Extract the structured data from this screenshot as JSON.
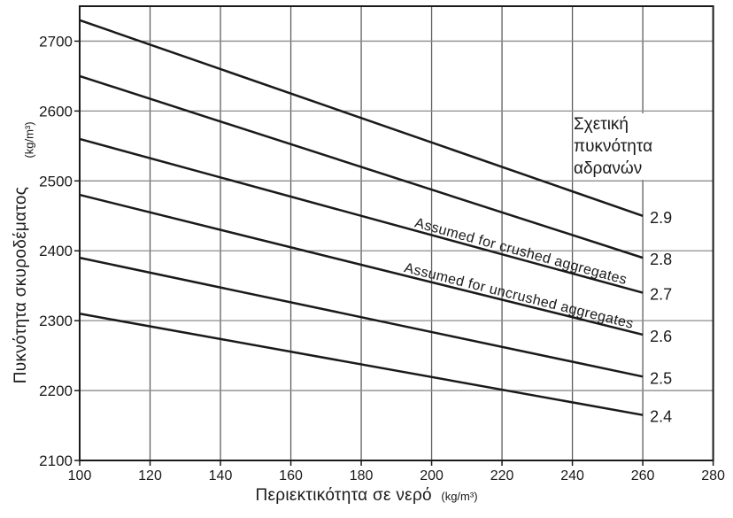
{
  "figure": {
    "background": "#ffffff",
    "ink": "#1a1a1a",
    "grid_color_vertical": "#5f5f5f",
    "grid_color_horizontal": "#8c8c8c"
  },
  "chart_data": {
    "type": "line",
    "title": "",
    "xlabel": "Περιεκτικότητα σε νερό",
    "xlabel_unit": "(kg/m³)",
    "ylabel": "Πυκνότητα σκυροδέματος",
    "ylabel_unit": "(kg/m³)",
    "xlim": [
      100,
      280
    ],
    "ylim": [
      2100,
      2750
    ],
    "x_ticks": [
      100,
      120,
      140,
      160,
      180,
      200,
      220,
      240,
      260,
      280
    ],
    "y_ticks": [
      2100,
      2200,
      2300,
      2400,
      2500,
      2600,
      2700
    ],
    "grid": true,
    "legend_position": "upper-right-inside",
    "legend_title_lines": [
      "Σχετική",
      "πυκνότητα",
      "αδρανών"
    ],
    "series": [
      {
        "name": "2.9",
        "x": [
          100,
          260
        ],
        "y": [
          2730,
          2450
        ]
      },
      {
        "name": "2.8",
        "x": [
          100,
          260
        ],
        "y": [
          2650,
          2390
        ]
      },
      {
        "name": "2.7",
        "x": [
          100,
          260
        ],
        "y": [
          2560,
          2340
        ]
      },
      {
        "name": "2.6",
        "x": [
          100,
          260
        ],
        "y": [
          2480,
          2280
        ]
      },
      {
        "name": "2.5",
        "x": [
          100,
          260
        ],
        "y": [
          2390,
          2220
        ]
      },
      {
        "name": "2.4",
        "x": [
          100,
          260
        ],
        "y": [
          2310,
          2165
        ]
      }
    ],
    "annotations": [
      {
        "text": "Assumed for crushed aggregates",
        "series": "2.7",
        "x_start": 195,
        "dy": -4
      },
      {
        "text": "Assumed for uncrushed aggregates",
        "series": "2.6",
        "x_start": 192,
        "dy": -4
      }
    ]
  }
}
